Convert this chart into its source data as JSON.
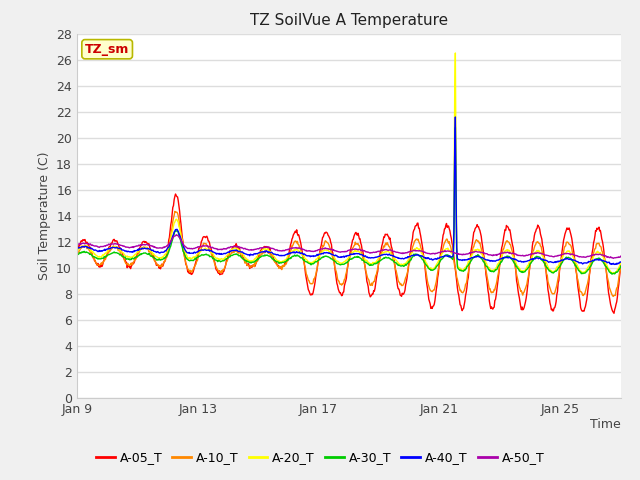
{
  "title": "TZ SoilVue A Temperature",
  "xlabel": "Time",
  "ylabel": "Soil Temperature (C)",
  "ylim": [
    0,
    28
  ],
  "yticks": [
    0,
    2,
    4,
    6,
    8,
    10,
    12,
    14,
    16,
    18,
    20,
    22,
    24,
    26,
    28
  ],
  "fig_bg": "#f0f0f0",
  "plot_bg": "#ffffff",
  "annotation_box": {
    "text": "TZ_sm",
    "bg": "#ffffcc",
    "border": "#b8b800",
    "text_color": "#cc0000"
  },
  "series": [
    {
      "label": "A-05_T",
      "color": "#ff0000"
    },
    {
      "label": "A-10_T",
      "color": "#ff8800"
    },
    {
      "label": "A-20_T",
      "color": "#ffff00"
    },
    {
      "label": "A-30_T",
      "color": "#00cc00"
    },
    {
      "label": "A-40_T",
      "color": "#0000ff"
    },
    {
      "label": "A-50_T",
      "color": "#aa00aa"
    }
  ],
  "x_tick_days": [
    9,
    13,
    17,
    21,
    25
  ],
  "x_tick_labels": [
    "Jan 9",
    "Jan 13",
    "Jan 17",
    "Jan 21",
    "Jan 25"
  ],
  "grid_color": "#dddddd",
  "legend_ncol": 6
}
